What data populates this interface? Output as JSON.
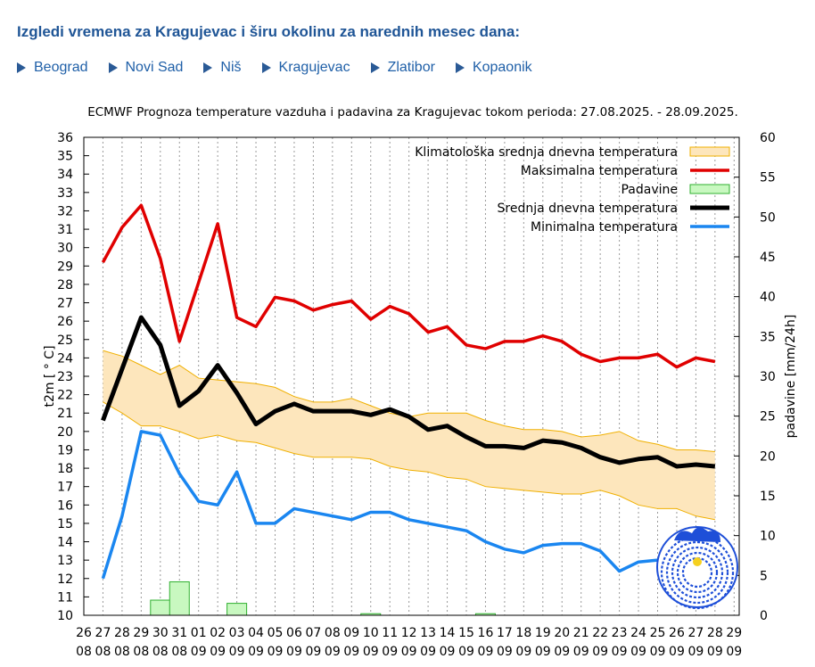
{
  "header": {
    "title": "Izgledi vremena za Kragujevac i širu okolinu za narednih mesec dana:"
  },
  "nav": {
    "cities": [
      "Beograd",
      "Novi Sad",
      "Niš",
      "Kragujevac",
      "Zlatibor",
      "Kopaonik"
    ]
  },
  "colors": {
    "max": "#e00000",
    "mean": "#000000",
    "min": "#1a86f0",
    "clim_fill": "#fde6bc",
    "clim_edge": "#f0b000",
    "precip_fill": "#c8f8c0",
    "precip_edge": "#30b030",
    "heading": "#1f5596"
  },
  "chart_data": {
    "type": "line",
    "title": "ECMWF Prognoza temperature vazduha i padavina za Kragujevac tokom perioda: 27.08.2025. - 28.09.2025.",
    "ylabel": "t2m [ ° C]",
    "y2label": "padavine [mm/24h]",
    "ylim": [
      10,
      36
    ],
    "y2lim": [
      0,
      60
    ],
    "y_ticks": [
      "10",
      "11",
      "12",
      "13",
      "14",
      "15",
      "16",
      "17",
      "18",
      "19",
      "20",
      "21",
      "22",
      "23",
      "24",
      "25",
      "26",
      "27",
      "28",
      "29",
      "30",
      "31",
      "32",
      "33",
      "34",
      "35",
      "36"
    ],
    "y2_ticks": [
      "0",
      "5",
      "10",
      "15",
      "20",
      "25",
      "30",
      "35",
      "40",
      "45",
      "50",
      "55",
      "60"
    ],
    "x_day_labels": [
      "26",
      "27",
      "28",
      "29",
      "30",
      "31",
      "01",
      "02",
      "03",
      "04",
      "05",
      "06",
      "07",
      "08",
      "09",
      "10",
      "11",
      "12",
      "13",
      "14",
      "15",
      "16",
      "17",
      "18",
      "19",
      "20",
      "21",
      "22",
      "23",
      "24",
      "25",
      "26",
      "27",
      "28",
      "29"
    ],
    "x_month_labels": [
      "08",
      "08",
      "08",
      "08",
      "08",
      "08",
      "09",
      "09",
      "09",
      "09",
      "09",
      "09",
      "09",
      "09",
      "09",
      "09",
      "09",
      "09",
      "09",
      "09",
      "09",
      "09",
      "09",
      "09",
      "09",
      "09",
      "09",
      "09",
      "09",
      "09",
      "09",
      "09",
      "09",
      "09",
      "09"
    ],
    "legend_position": "top-right",
    "grid": true,
    "x": [
      "27.08",
      "28.08",
      "29.08",
      "30.08",
      "31.08",
      "01.09",
      "02.09",
      "03.09",
      "04.09",
      "05.09",
      "06.09",
      "07.09",
      "08.09",
      "09.09",
      "10.09",
      "11.09",
      "12.09",
      "13.09",
      "14.09",
      "15.09",
      "16.09",
      "17.09",
      "18.09",
      "19.09",
      "20.09",
      "21.09",
      "22.09",
      "23.09",
      "24.09",
      "25.09",
      "26.09",
      "27.09",
      "28.09"
    ],
    "series": [
      {
        "name": "Klimatološka srednja dnevna temperatura",
        "kind": "band",
        "upper": [
          24.4,
          24.1,
          23.6,
          23.1,
          23.6,
          22.9,
          22.8,
          22.7,
          22.6,
          22.4,
          21.9,
          21.6,
          21.6,
          21.8,
          21.4,
          21.0,
          20.8,
          21.0,
          21.0,
          21.0,
          20.6,
          20.3,
          20.1,
          20.1,
          20.0,
          19.7,
          19.8,
          20.0,
          19.5,
          19.3,
          19.0,
          19.0,
          18.9
        ],
        "lower": [
          21.6,
          21.0,
          20.3,
          20.3,
          20.0,
          19.6,
          19.8,
          19.5,
          19.4,
          19.1,
          18.8,
          18.6,
          18.6,
          18.6,
          18.5,
          18.1,
          17.9,
          17.8,
          17.5,
          17.4,
          17.0,
          16.9,
          16.8,
          16.7,
          16.6,
          16.6,
          16.8,
          16.5,
          16.0,
          15.8,
          15.8,
          15.4,
          15.2
        ]
      },
      {
        "name": "Maksimalna temperatura",
        "kind": "line",
        "values": [
          29.2,
          31.1,
          32.3,
          29.4,
          24.9,
          28.1,
          31.3,
          26.2,
          25.7,
          27.3,
          27.1,
          26.6,
          26.9,
          27.1,
          26.1,
          26.8,
          26.4,
          25.4,
          25.7,
          24.7,
          24.5,
          24.9,
          24.9,
          25.2,
          24.9,
          24.2,
          23.8,
          24.0,
          24.0,
          24.2,
          23.5,
          24.0,
          23.8
        ]
      },
      {
        "name": "Padavine",
        "kind": "bar",
        "axis": "y2",
        "values": [
          0,
          0,
          0,
          1.9,
          4.2,
          0,
          0,
          1.5,
          0,
          0,
          0,
          0,
          0,
          0,
          0.2,
          0,
          0,
          0,
          0,
          0,
          0.2,
          0,
          0,
          0,
          0,
          0,
          0,
          0,
          0,
          0,
          0,
          0,
          0
        ]
      },
      {
        "name": "Srednja dnevna temperatura",
        "kind": "line",
        "values": [
          20.6,
          23.4,
          26.2,
          24.7,
          21.4,
          22.2,
          23.6,
          22.1,
          20.4,
          21.1,
          21.5,
          21.1,
          21.1,
          21.1,
          20.9,
          21.2,
          20.8,
          20.1,
          20.3,
          19.7,
          19.2,
          19.2,
          19.1,
          19.5,
          19.4,
          19.1,
          18.6,
          18.3,
          18.5,
          18.6,
          18.1,
          18.2,
          18.1
        ]
      },
      {
        "name": "Minimalna temperatura",
        "kind": "line",
        "values": [
          12.0,
          15.4,
          20.0,
          19.8,
          17.7,
          16.2,
          16.0,
          17.8,
          15.0,
          15.0,
          15.8,
          15.6,
          15.4,
          15.2,
          15.6,
          15.6,
          15.2,
          15.0,
          14.8,
          14.6,
          14.0,
          13.6,
          13.4,
          13.8,
          13.9,
          13.9,
          13.5,
          12.4,
          12.9,
          13.0,
          12.6,
          12.5,
          12.5
        ]
      }
    ]
  }
}
